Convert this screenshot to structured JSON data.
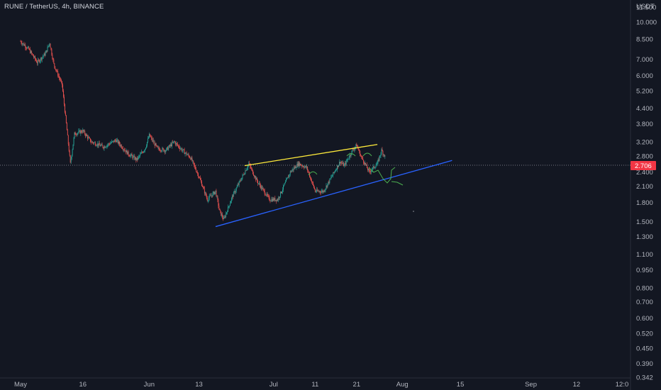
{
  "header": {
    "symbol_label": "RUNE / TetherUS, 4h, BINANCE"
  },
  "colors": {
    "background": "#131722",
    "up_candle": "#26a69a",
    "down_candle": "#ef5350",
    "upper_trendline": "#ffeb3b",
    "lower_trendline": "#2962ff",
    "annotation": "#4caf50",
    "current_price_label": "#f23645",
    "axis_text": "#b2b5be"
  },
  "chart_data": {
    "type": "candlestick",
    "symbol": "RUNE / TetherUS",
    "interval": "4h",
    "exchange": "BINANCE",
    "y_unit": "USDT",
    "y_scale": "log",
    "y_ticks": [
      "11.500",
      "10.000",
      "8.500",
      "7.000",
      "6.000",
      "5.200",
      "4.400",
      "3.800",
      "3.200",
      "2.800",
      "2.400",
      "2.100",
      "1.800",
      "1.500",
      "1.300",
      "1.100",
      "0.950",
      "0.800",
      "0.700",
      "0.600",
      "0.520",
      "0.450",
      "0.390",
      "0.342"
    ],
    "x_ticks": [
      "May",
      "16",
      "Jun",
      "13",
      "Jul",
      "11",
      "21",
      "Aug",
      "15",
      "Sep",
      "12",
      "12:0"
    ],
    "current_price": "2.706",
    "price_path": [
      {
        "x": "May 1",
        "y": 8.3
      },
      {
        "x": "May 3",
        "y": 7.7
      },
      {
        "x": "May 5",
        "y": 6.8
      },
      {
        "x": "May 7",
        "y": 7.4
      },
      {
        "x": "May 8",
        "y": 8.2
      },
      {
        "x": "May 9",
        "y": 6.7
      },
      {
        "x": "May 11",
        "y": 5.5
      },
      {
        "x": "May 12",
        "y": 3.8
      },
      {
        "x": "May 13",
        "y": 2.6
      },
      {
        "x": "May 14",
        "y": 3.45
      },
      {
        "x": "May 16",
        "y": 3.55
      },
      {
        "x": "May 18",
        "y": 3.2
      },
      {
        "x": "May 21",
        "y": 3.05
      },
      {
        "x": "May 24",
        "y": 3.25
      },
      {
        "x": "May 27",
        "y": 2.85
      },
      {
        "x": "May 29",
        "y": 2.7
      },
      {
        "x": "May 31",
        "y": 3.0
      },
      {
        "x": "Jun 1",
        "y": 3.4
      },
      {
        "x": "Jun 3",
        "y": 3.0
      },
      {
        "x": "Jun 5",
        "y": 2.95
      },
      {
        "x": "Jun 7",
        "y": 3.2
      },
      {
        "x": "Jun 9",
        "y": 2.95
      },
      {
        "x": "Jun 11",
        "y": 2.75
      },
      {
        "x": "Jun 13",
        "y": 2.3
      },
      {
        "x": "Jun 15",
        "y": 1.85
      },
      {
        "x": "Jun 17",
        "y": 2.0
      },
      {
        "x": "Jun 18",
        "y": 1.65
      },
      {
        "x": "Jun 19",
        "y": 1.53
      },
      {
        "x": "Jun 21",
        "y": 1.9
      },
      {
        "x": "Jun 24",
        "y": 2.4
      },
      {
        "x": "Jun 25",
        "y": 2.6
      },
      {
        "x": "Jun 27",
        "y": 2.2
      },
      {
        "x": "Jun 30",
        "y": 1.85
      },
      {
        "x": "Jul 2",
        "y": 1.85
      },
      {
        "x": "Jul 5",
        "y": 2.4
      },
      {
        "x": "Jul 7",
        "y": 2.6
      },
      {
        "x": "Jul 9",
        "y": 2.5
      },
      {
        "x": "Jul 11",
        "y": 2.0
      },
      {
        "x": "Jul 13",
        "y": 2.0
      },
      {
        "x": "Jul 15",
        "y": 2.3
      },
      {
        "x": "Jul 17",
        "y": 2.65
      },
      {
        "x": "Jul 18",
        "y": 2.55
      },
      {
        "x": "Jul 20",
        "y": 2.95
      },
      {
        "x": "Jul 21",
        "y": 3.1
      },
      {
        "x": "Jul 22",
        "y": 2.8
      },
      {
        "x": "Jul 23",
        "y": 2.6
      },
      {
        "x": "Jul 24",
        "y": 2.4
      },
      {
        "x": "Jul 25",
        "y": 2.5
      },
      {
        "x": "Jul 26",
        "y": 2.6
      },
      {
        "x": "Jul 27",
        "y": 2.95
      },
      {
        "x": "Jul 28",
        "y": 2.75
      }
    ],
    "drawings": [
      {
        "name": "upper-trendline",
        "color": "#ffeb3b",
        "from": {
          "x": "Jun 24",
          "y": 2.55
        },
        "to": {
          "x": "Jul 26",
          "y": 3.12
        }
      },
      {
        "name": "lower-trendline",
        "color": "#2962ff",
        "from": {
          "x": "Jun 17",
          "y": 1.43
        },
        "to": {
          "x": "Aug 13",
          "y": 2.68
        }
      }
    ],
    "grid": false,
    "legend": "none"
  }
}
